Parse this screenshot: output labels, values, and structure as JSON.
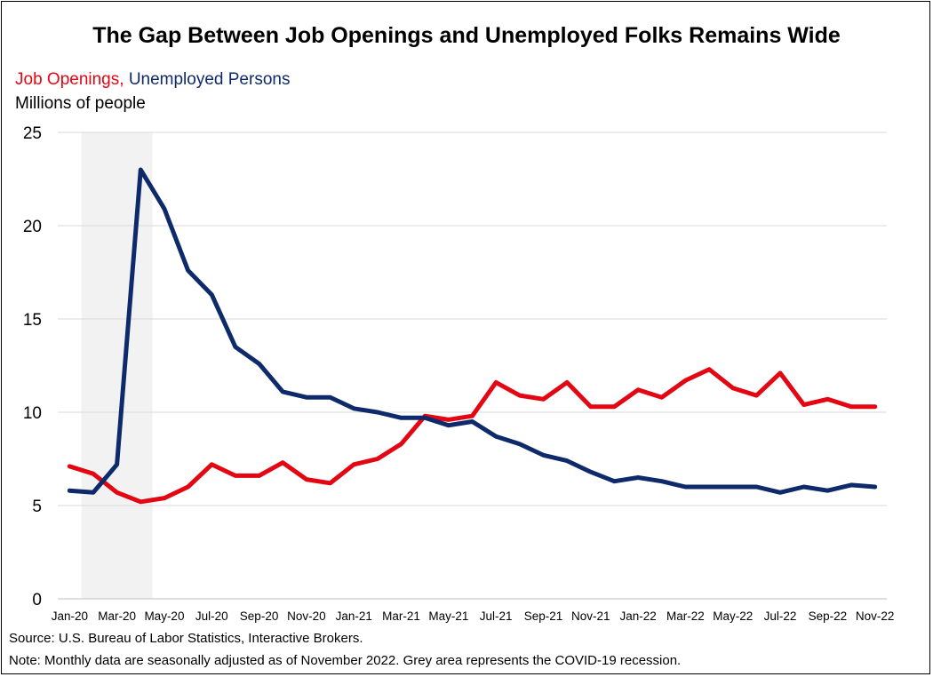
{
  "title": "The Gap Between Job Openings and Unemployed Folks Remains Wide",
  "legend": {
    "job_openings": "Job Openings,",
    "unemployed": "Unemployed Persons"
  },
  "units": "Millions of people",
  "source": "Source: U.S. Bureau of Labor Statistics, Interactive Brokers.",
  "note": "Note: Monthly data are seasonally adjusted as of November 2022. Grey area represents the COVID-19 recession.",
  "colors": {
    "job_openings": "#e30613",
    "unemployed": "#0e2a6b",
    "recession": "#f2f2f2",
    "grid": "#d9d9d9"
  },
  "chart_data": {
    "type": "line",
    "title": "The Gap Between Job Openings and Unemployed Folks Remains Wide",
    "ylabel": "Millions of people",
    "xlabel": "",
    "ylim": [
      0,
      25
    ],
    "yticks": [
      0,
      5,
      10,
      15,
      20,
      25
    ],
    "grid": true,
    "legend_placement": "top-left",
    "x": [
      "Jan-20",
      "Feb-20",
      "Mar-20",
      "Apr-20",
      "May-20",
      "Jun-20",
      "Jul-20",
      "Aug-20",
      "Sep-20",
      "Oct-20",
      "Nov-20",
      "Dec-20",
      "Jan-21",
      "Feb-21",
      "Mar-21",
      "Apr-21",
      "May-21",
      "Jun-21",
      "Jul-21",
      "Aug-21",
      "Sep-21",
      "Oct-21",
      "Nov-21",
      "Dec-21",
      "Jan-22",
      "Feb-22",
      "Mar-22",
      "Apr-22",
      "May-22",
      "Jun-22",
      "Jul-22",
      "Aug-22",
      "Sep-22",
      "Oct-22",
      "Nov-22"
    ],
    "x_tick_labels": [
      "Jan-20",
      "Mar-20",
      "May-20",
      "Jul-20",
      "Sep-20",
      "Nov-20",
      "Jan-21",
      "Mar-21",
      "May-21",
      "Jul-21",
      "Sep-21",
      "Nov-21",
      "Jan-22",
      "Mar-22",
      "May-22",
      "Jul-22",
      "Sep-22",
      "Nov-22"
    ],
    "shaded_region": {
      "start": "Feb-20",
      "end": "Apr-20"
    },
    "series": [
      {
        "name": "Job Openings",
        "values": [
          7.1,
          6.7,
          5.7,
          5.2,
          5.4,
          6.0,
          7.2,
          6.6,
          6.6,
          7.3,
          6.4,
          6.2,
          7.2,
          7.5,
          8.3,
          9.8,
          9.6,
          9.8,
          11.6,
          10.9,
          10.7,
          11.6,
          10.3,
          10.3,
          11.2,
          10.8,
          11.7,
          12.3,
          11.3,
          10.9,
          12.1,
          10.4,
          10.7,
          10.3,
          10.3
        ],
        "color": "#e30613"
      },
      {
        "name": "Unemployed Persons",
        "values": [
          5.8,
          5.7,
          7.2,
          23.0,
          20.9,
          17.6,
          16.3,
          13.5,
          12.6,
          11.1,
          10.8,
          10.8,
          10.2,
          10.0,
          9.7,
          9.7,
          9.3,
          9.5,
          8.7,
          8.3,
          7.7,
          7.4,
          6.8,
          6.3,
          6.5,
          6.3,
          6.0,
          6.0,
          6.0,
          6.0,
          5.7,
          6.0,
          5.8,
          6.1,
          6.0
        ],
        "color": "#0e2a6b"
      }
    ]
  }
}
